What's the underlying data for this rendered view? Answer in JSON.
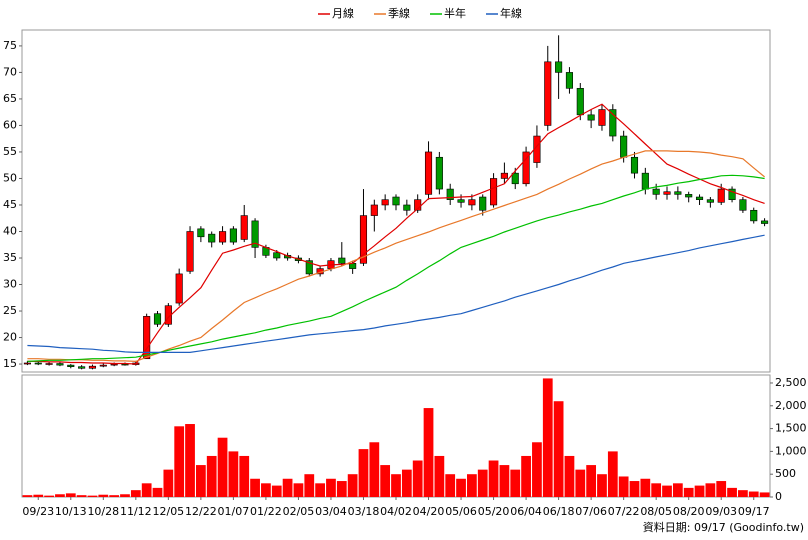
{
  "chart_data": {
    "type": "candlestick",
    "footer": "資料日期: 09/17 (Goodinfo.tw)",
    "categories": [
      null,
      "09/23",
      null,
      null,
      "10/13",
      null,
      null,
      "10/28",
      null,
      null,
      "11/12",
      null,
      null,
      "12/05",
      null,
      null,
      "12/22",
      null,
      null,
      "01/07",
      null,
      null,
      "01/22",
      null,
      null,
      "02/05",
      null,
      null,
      "03/04",
      null,
      null,
      "03/18",
      null,
      null,
      "04/02",
      null,
      null,
      "04/20",
      null,
      null,
      "05/06",
      null,
      null,
      "05/20",
      null,
      null,
      "06/04",
      null,
      null,
      "06/18",
      null,
      null,
      "07/06",
      null,
      null,
      "07/22",
      null,
      null,
      "08/05",
      null,
      null,
      "08/20",
      null,
      null,
      "09/03",
      null,
      null,
      "09/17",
      null
    ],
    "open": [
      15.0,
      15.2,
      15.0,
      15.1,
      14.8,
      14.5,
      14.2,
      14.6,
      14.8,
      15.0,
      14.9,
      16.0,
      24.5,
      22.5,
      26.5,
      32.5,
      40.5,
      39.5,
      38,
      40.5,
      38.5,
      42,
      37,
      36,
      35.5,
      35,
      34.5,
      32,
      33,
      35,
      34,
      34,
      43,
      45,
      46.5,
      45,
      44,
      47,
      54,
      48,
      46,
      45,
      46.5,
      45,
      50,
      51,
      49,
      53,
      60,
      72,
      70,
      67,
      62,
      60,
      63,
      58,
      54,
      51,
      48,
      47,
      47.5,
      47,
      46.5,
      46,
      45.5,
      48,
      46,
      44,
      42
    ],
    "high": [
      15.6,
      15.5,
      15.4,
      15.4,
      15.0,
      14.8,
      14.9,
      15.1,
      15.3,
      15.3,
      15.6,
      24.5,
      25,
      26.5,
      33,
      41,
      41,
      40,
      41,
      41,
      45,
      42.5,
      37.5,
      36.5,
      36,
      35.5,
      35,
      33.5,
      35,
      38,
      34.5,
      48,
      46,
      47,
      47,
      46,
      47,
      57,
      55,
      49,
      47,
      47,
      47,
      51,
      53,
      52,
      56,
      60,
      75,
      77,
      71,
      68,
      63,
      64,
      64,
      59,
      55,
      52,
      49,
      48.5,
      48.5,
      47.5,
      47,
      46.5,
      49,
      48.5,
      46.5,
      44.5,
      42.5
    ],
    "low": [
      14.8,
      14.8,
      14.7,
      14.6,
      14.2,
      14.0,
      14.0,
      14.4,
      14.6,
      14.7,
      14.7,
      16,
      22,
      22,
      26,
      32,
      38,
      37,
      37.5,
      37.5,
      38,
      35,
      35,
      34.5,
      34.5,
      34,
      31.5,
      31.5,
      32.5,
      33.5,
      32,
      33.5,
      40,
      44,
      44,
      43,
      43.5,
      46,
      47,
      45,
      44.5,
      44,
      43,
      44.5,
      49,
      48,
      48.5,
      52,
      59,
      65,
      66,
      61,
      59.5,
      59,
      57,
      53,
      50,
      47,
      46,
      46,
      46,
      45.5,
      45,
      44.5,
      45,
      45.5,
      43.5,
      41.5,
      41
    ],
    "close": [
      15.2,
      15.0,
      15.1,
      14.8,
      14.5,
      14.2,
      14.6,
      14.8,
      15.0,
      14.9,
      15.2,
      24,
      22.5,
      26,
      32,
      40,
      39,
      38,
      40,
      38,
      43,
      37,
      35.5,
      35,
      35,
      34.5,
      32,
      33,
      34.5,
      34,
      33,
      43,
      45,
      46,
      45,
      44,
      46,
      55,
      48,
      46,
      45.5,
      46,
      44,
      50,
      51,
      49,
      55,
      58,
      72,
      70,
      67,
      62,
      61,
      63,
      58,
      54,
      51,
      48,
      47,
      47.5,
      47,
      46.5,
      46,
      45.5,
      48,
      46,
      44,
      42,
      41.5
    ],
    "up_color": "#ff0000",
    "down_color": "#009900",
    "ylim": [
      13.5,
      78
    ],
    "yticks": [
      15,
      20,
      25,
      30,
      35,
      40,
      45,
      50,
      55,
      60,
      65,
      70,
      75
    ],
    "series": [
      {
        "name": "月線",
        "color": "#e00000",
        "values": [
          15.5,
          15.5,
          15.4,
          15.4,
          15.3,
          15.3,
          15.2,
          15.2,
          15.1,
          15.1,
          15.0,
          17.9,
          20.9,
          23.8,
          25.7,
          27.5,
          29.4,
          32.7,
          35.9,
          36.5,
          37.2,
          37.8,
          37.0,
          36.2,
          35.4,
          34.8,
          34.1,
          33.5,
          33.7,
          33.8,
          34.0,
          35.7,
          37.3,
          39.0,
          40.6,
          42.5,
          44.3,
          46.2,
          46.3,
          46.4,
          46.5,
          46.6,
          47.4,
          48.2,
          49.0,
          51.4,
          53.7,
          56.1,
          58.4,
          59.6,
          60.7,
          61.9,
          63.0,
          64.0,
          62.1,
          60.3,
          58.4,
          56.5,
          54.6,
          52.7,
          51.8,
          50.8,
          49.9,
          49.0,
          48.3,
          47.5,
          46.8,
          46.0,
          45.3
        ]
      },
      {
        "name": "季線",
        "color": "#e8782a",
        "values": [
          16.0,
          16.0,
          15.9,
          15.9,
          15.8,
          15.8,
          15.7,
          15.7,
          15.6,
          15.6,
          15.5,
          16.3,
          17.0,
          17.8,
          18.5,
          19.3,
          20.0,
          21.7,
          23.3,
          25.0,
          26.6,
          27.5,
          28.4,
          29.2,
          30.1,
          31.0,
          31.6,
          32.3,
          32.9,
          33.5,
          34.4,
          35.2,
          36.1,
          36.9,
          37.8,
          38.5,
          39.2,
          39.9,
          40.7,
          41.4,
          42.1,
          42.8,
          43.5,
          44.2,
          44.9,
          45.6,
          46.3,
          47.0,
          48.0,
          48.9,
          49.9,
          50.8,
          51.8,
          52.7,
          53.3,
          54.0,
          54.6,
          55.2,
          55.2,
          55.2,
          55.1,
          55.1,
          55.0,
          54.8,
          54.4,
          54.1,
          53.7,
          52.0,
          50.3
        ]
      },
      {
        "name": "半年",
        "color": "#00c000",
        "values": [
          15.5,
          15.6,
          15.7,
          15.7,
          15.8,
          15.9,
          16.0,
          16.0,
          16.1,
          16.2,
          16.3,
          16.7,
          17.1,
          17.6,
          18.0,
          18.4,
          18.8,
          19.2,
          19.7,
          20.1,
          20.5,
          20.9,
          21.4,
          21.8,
          22.3,
          22.7,
          23.1,
          23.6,
          24.0,
          24.9,
          25.8,
          26.8,
          27.7,
          28.6,
          29.5,
          30.8,
          32.0,
          33.3,
          34.5,
          35.8,
          37.0,
          37.7,
          38.4,
          39.1,
          39.9,
          40.6,
          41.3,
          42.0,
          42.6,
          43.1,
          43.7,
          44.2,
          44.8,
          45.3,
          46.0,
          46.7,
          47.3,
          48.0,
          48.4,
          48.7,
          49.1,
          49.4,
          49.8,
          50.1,
          50.5,
          50.6,
          50.5,
          50.3,
          50.0
        ]
      },
      {
        "name": "年線",
        "color": "#1f5fbf",
        "values": [
          18.5,
          18.4,
          18.3,
          18.1,
          18.0,
          17.9,
          17.8,
          17.6,
          17.5,
          17.3,
          17.2,
          17.2,
          17.2,
          17.2,
          17.2,
          17.2,
          17.5,
          17.8,
          18.1,
          18.4,
          18.7,
          19.0,
          19.3,
          19.6,
          19.9,
          20.2,
          20.5,
          20.7,
          20.9,
          21.1,
          21.3,
          21.5,
          21.8,
          22.2,
          22.5,
          22.8,
          23.2,
          23.5,
          23.8,
          24.2,
          24.5,
          25.1,
          25.7,
          26.3,
          26.9,
          27.6,
          28.2,
          28.8,
          29.4,
          30.0,
          30.7,
          31.3,
          32.0,
          32.7,
          33.3,
          34.0,
          34.4,
          34.8,
          35.2,
          35.6,
          36.0,
          36.4,
          36.9,
          37.3,
          37.7,
          38.1,
          38.5,
          38.9,
          39.3
        ]
      }
    ],
    "volume": {
      "color": "#ff0000",
      "values": [
        40,
        50,
        30,
        60,
        80,
        40,
        30,
        50,
        40,
        60,
        150,
        300,
        200,
        600,
        1550,
        1600,
        700,
        900,
        1300,
        1000,
        900,
        400,
        300,
        250,
        400,
        300,
        500,
        300,
        400,
        350,
        500,
        1050,
        1200,
        700,
        500,
        600,
        800,
        1950,
        900,
        500,
        400,
        500,
        600,
        800,
        700,
        600,
        900,
        1200,
        2600,
        2100,
        900,
        600,
        700,
        500,
        1000,
        450,
        350,
        400,
        300,
        250,
        300,
        200,
        250,
        300,
        350,
        200,
        150,
        120,
        100
      ],
      "ylim": [
        0,
        2675
      ],
      "yticks": [
        0,
        500,
        {
          "value": 1000,
          "label": "1,000"
        },
        {
          "value": 1500,
          "label": "1,500"
        },
        {
          "value": 2000,
          "label": "2,000"
        },
        {
          "value": 2500,
          "label": "2,500"
        }
      ]
    }
  }
}
